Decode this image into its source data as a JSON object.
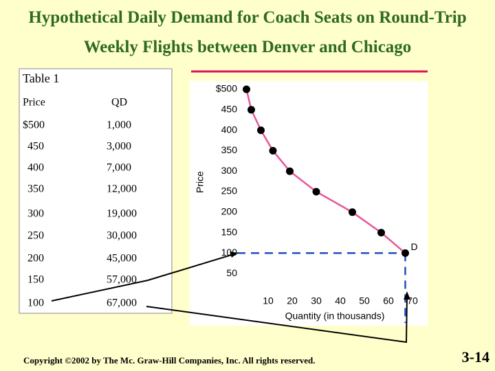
{
  "title": "Hypothetical Daily Demand for Coach Seats on Round-Trip Weekly Flights between Denver and Chicago",
  "table": {
    "title": "Table 1",
    "header": [
      "Price",
      "QD"
    ],
    "rows": [
      [
        "$500",
        "1,000"
      ],
      [
        "450",
        "3,000"
      ],
      [
        "400",
        "7,000"
      ],
      [
        "350",
        "12,000"
      ],
      [
        "300",
        "19,000"
      ],
      [
        "250",
        "30,000"
      ],
      [
        "200",
        "45,000"
      ],
      [
        "150",
        "57,000"
      ],
      [
        "100",
        "67,000"
      ]
    ]
  },
  "chart_data": {
    "type": "line",
    "x_label": "Quantity (in thousands)",
    "y_label": "Price",
    "line_label": "D",
    "x": [
      1,
      3,
      7,
      12,
      19,
      30,
      45,
      57,
      67
    ],
    "values": [
      500,
      450,
      400,
      350,
      300,
      250,
      200,
      150,
      100
    ],
    "color": "#e8559a",
    "marker_color": "#000000",
    "guide_color": "#1f4fbf",
    "xlim": [
      0,
      70
    ],
    "xticks": [
      10,
      20,
      30,
      40,
      50,
      60,
      70
    ],
    "ylim": [
      0,
      500
    ],
    "yticks": [
      50,
      100,
      150,
      200,
      250,
      300,
      350,
      400,
      450,
      {
        "value": 500,
        "label": "$500"
      }
    ]
  },
  "footer": "Copyright ©2002 by The Mc. Graw-Hill Companies, Inc.  All rights reserved.",
  "page_number": "3-14"
}
